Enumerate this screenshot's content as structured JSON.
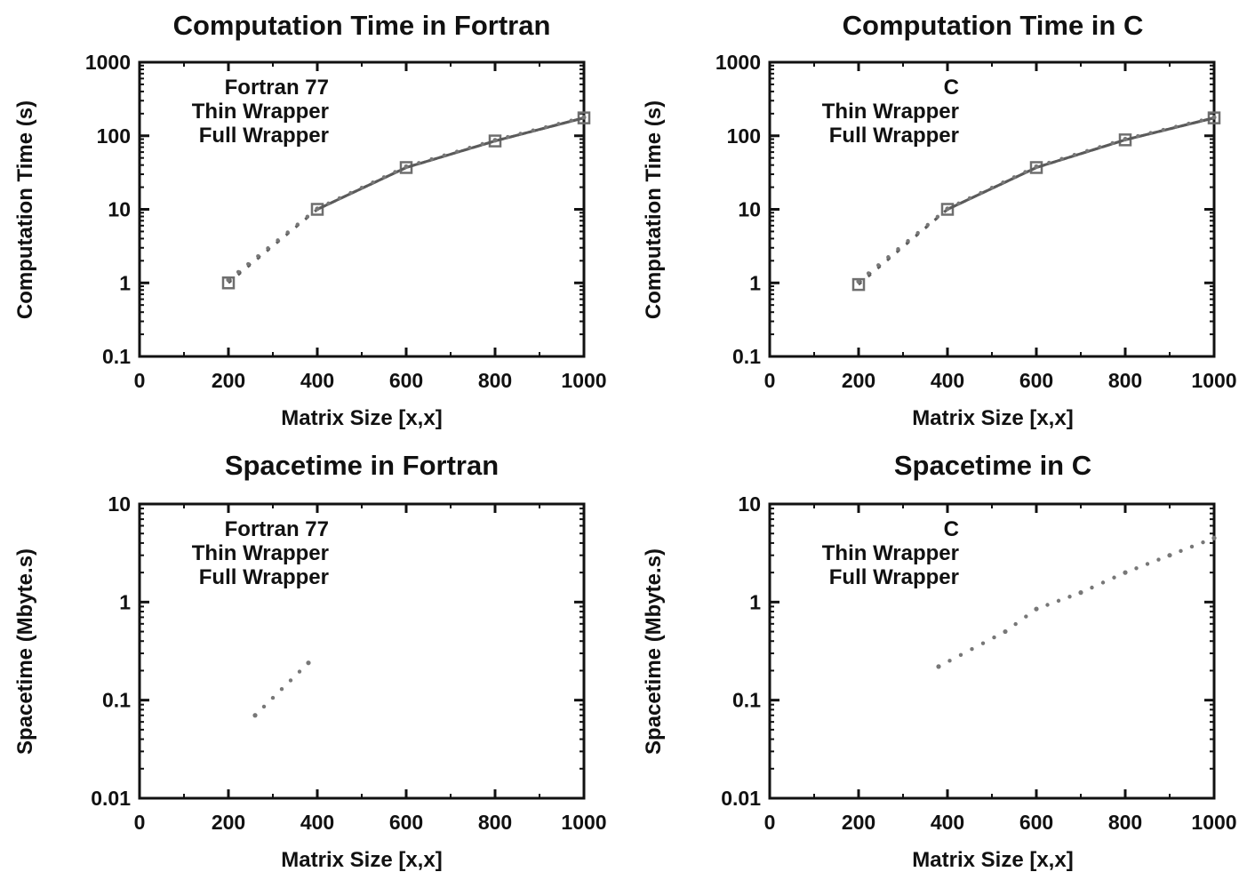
{
  "chart_data": [
    {
      "type": "line",
      "title": "Computation Time in Fortran",
      "xlabel": "Matrix Size [x,x]",
      "ylabel": "Computation Time (s)",
      "xlim": [
        0,
        1000
      ],
      "ylim": [
        0.1,
        1000
      ],
      "yscale": "log",
      "xticks": [
        "0",
        "200",
        "400",
        "600",
        "800",
        "1000"
      ],
      "yticks": [
        "0.1",
        "1",
        "10",
        "100",
        "1000"
      ],
      "legend_position": "top-left",
      "series": [
        {
          "name": "Fortran 77",
          "style": "points-line",
          "x": [
            200,
            400,
            600,
            800,
            1000
          ],
          "y": [
            1.0,
            10,
            37,
            85,
            175
          ]
        },
        {
          "name": "Thin Wrapper",
          "style": "line",
          "x": [
            200,
            400,
            600,
            800,
            1000
          ],
          "y": [
            1.05,
            10,
            37,
            85,
            175
          ]
        },
        {
          "name": "Full Wrapper",
          "style": "dots",
          "x": [
            200,
            400,
            600,
            800,
            1000
          ],
          "y": [
            1.1,
            10.2,
            38,
            87,
            178
          ]
        }
      ]
    },
    {
      "type": "line",
      "title": "Computation Time in C",
      "xlabel": "Matrix Size [x,x]",
      "ylabel": "Computation Time (s)",
      "xlim": [
        0,
        1000
      ],
      "ylim": [
        0.1,
        1000
      ],
      "yscale": "log",
      "xticks": [
        "0",
        "200",
        "400",
        "600",
        "800",
        "1000"
      ],
      "yticks": [
        "0.1",
        "1",
        "10",
        "100",
        "1000"
      ],
      "legend_position": "top-left",
      "series": [
        {
          "name": "C",
          "style": "points-line",
          "x": [
            200,
            400,
            600,
            800,
            1000
          ],
          "y": [
            0.95,
            10,
            37,
            88,
            175
          ]
        },
        {
          "name": "Thin Wrapper",
          "style": "line",
          "x": [
            200,
            400,
            600,
            800,
            1000
          ],
          "y": [
            1.0,
            10,
            37,
            88,
            175
          ]
        },
        {
          "name": "Full Wrapper",
          "style": "dots",
          "x": [
            200,
            400,
            600,
            800,
            1000
          ],
          "y": [
            1.05,
            10.2,
            38,
            90,
            178
          ]
        }
      ]
    },
    {
      "type": "line",
      "title": "Spacetime in Fortran",
      "xlabel": "Matrix Size [x,x]",
      "ylabel": "Spacetime (Mbyte.s)",
      "xlim": [
        0,
        1000
      ],
      "ylim": [
        0.01,
        10
      ],
      "yscale": "log",
      "xticks": [
        "0",
        "200",
        "400",
        "600",
        "800",
        "1000"
      ],
      "yticks": [
        "0.01",
        "0.1",
        "1",
        "10"
      ],
      "legend_position": "top-left",
      "series": [
        {
          "name": "Fortran 77",
          "style": "points-line",
          "x": [],
          "y": []
        },
        {
          "name": "Thin Wrapper",
          "style": "line",
          "x": [],
          "y": []
        },
        {
          "name": "Full Wrapper",
          "style": "dots",
          "x": [
            260,
            380
          ],
          "y": [
            0.07,
            0.24
          ]
        }
      ]
    },
    {
      "type": "line",
      "title": "Spacetime in C",
      "xlabel": "Matrix Size [x,x]",
      "ylabel": "Spacetime (Mbyte.s)",
      "xlim": [
        0,
        1000
      ],
      "ylim": [
        0.01,
        10
      ],
      "yscale": "log",
      "xticks": [
        "0",
        "200",
        "400",
        "600",
        "800",
        "1000"
      ],
      "yticks": [
        "0.01",
        "0.1",
        "1",
        "10"
      ],
      "legend_position": "top-left",
      "series": [
        {
          "name": "C",
          "style": "points-line",
          "x": [],
          "y": []
        },
        {
          "name": "Thin Wrapper",
          "style": "line",
          "x": [],
          "y": []
        },
        {
          "name": "Full Wrapper",
          "style": "dots",
          "x": [
            380,
            530,
            600,
            700,
            800,
            900,
            1000
          ],
          "y": [
            0.22,
            0.5,
            0.85,
            1.25,
            2.0,
            3.0,
            4.5
          ]
        }
      ]
    }
  ],
  "colors": {
    "axis": "#111111",
    "series_line": "#5a5a5a",
    "marker": "#6e6e6e",
    "dots": "#777777"
  }
}
